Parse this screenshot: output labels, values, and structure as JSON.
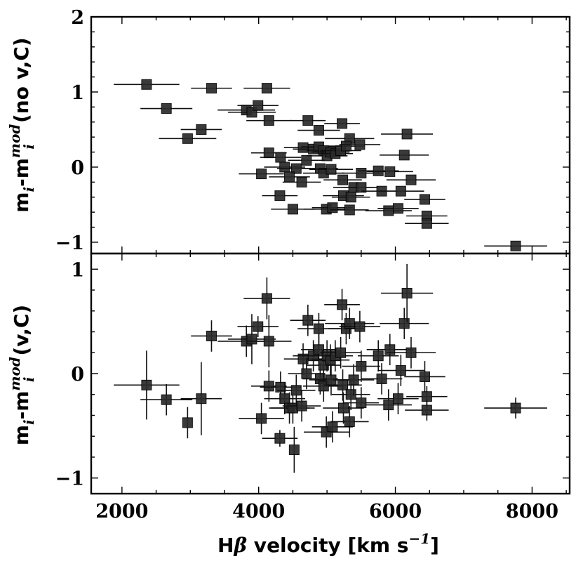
{
  "chart_data": [
    {
      "type": "scatter",
      "panel": "top",
      "ylabel_main": "m",
      "ylabel_sub_i": "i",
      "ylabel_mid": "-m",
      "ylabel_sup": "mod",
      "ylabel_sub2": "i",
      "ylabel_tail": "(no v,C)",
      "xlim": [
        1550,
        8550
      ],
      "ylim": [
        -1.15,
        2.0
      ],
      "yticks": [
        -1,
        0,
        1,
        2
      ],
      "ytick_labels": [
        "−1",
        "0",
        "1",
        "2"
      ],
      "points": [
        {
          "x": 2360,
          "y": 1.1,
          "xe": 480
        },
        {
          "x": 3310,
          "y": 1.05,
          "xe": 300
        },
        {
          "x": 4120,
          "y": 1.05,
          "xe": 340
        },
        {
          "x": 2650,
          "y": 0.78,
          "xe": 380
        },
        {
          "x": 3160,
          "y": 0.5,
          "xe": 300
        },
        {
          "x": 2960,
          "y": 0.38,
          "xe": 420
        },
        {
          "x": 3820,
          "y": 0.76,
          "xe": 420
        },
        {
          "x": 3900,
          "y": 0.73,
          "xe": 350
        },
        {
          "x": 3990,
          "y": 0.82,
          "xe": 300
        },
        {
          "x": 4150,
          "y": 0.62,
          "xe": 330
        },
        {
          "x": 4720,
          "y": 0.62,
          "xe": 260
        },
        {
          "x": 4880,
          "y": 0.49,
          "xe": 310
        },
        {
          "x": 5220,
          "y": 0.58,
          "xe": 260
        },
        {
          "x": 6170,
          "y": 0.44,
          "xe": 380
        },
        {
          "x": 5330,
          "y": 0.38,
          "xe": 360
        },
        {
          "x": 4150,
          "y": 0.19,
          "xe": 260
        },
        {
          "x": 4320,
          "y": 0.13,
          "xe": 300
        },
        {
          "x": 4650,
          "y": 0.26,
          "xe": 280
        },
        {
          "x": 4800,
          "y": 0.24,
          "xe": 300
        },
        {
          "x": 4880,
          "y": 0.27,
          "xe": 260
        },
        {
          "x": 4950,
          "y": 0.22,
          "xe": 250
        },
        {
          "x": 5000,
          "y": 0.15,
          "xe": 300
        },
        {
          "x": 5050,
          "y": 0.2,
          "xe": 280
        },
        {
          "x": 5120,
          "y": 0.18,
          "xe": 260
        },
        {
          "x": 5200,
          "y": 0.22,
          "xe": 300
        },
        {
          "x": 5280,
          "y": 0.28,
          "xe": 260
        },
        {
          "x": 5480,
          "y": 0.3,
          "xe": 300
        },
        {
          "x": 6130,
          "y": 0.16,
          "xe": 360
        },
        {
          "x": 4700,
          "y": 0.09,
          "xe": 270
        },
        {
          "x": 4380,
          "y": 0.0,
          "xe": 300
        },
        {
          "x": 4550,
          "y": -0.02,
          "xe": 280
        },
        {
          "x": 4900,
          "y": -0.02,
          "xe": 260
        },
        {
          "x": 4950,
          "y": -0.08,
          "xe": 300
        },
        {
          "x": 5060,
          "y": -0.03,
          "xe": 320
        },
        {
          "x": 4040,
          "y": -0.09,
          "xe": 330
        },
        {
          "x": 4450,
          "y": -0.13,
          "xe": 300
        },
        {
          "x": 4630,
          "y": -0.2,
          "xe": 280
        },
        {
          "x": 5230,
          "y": -0.17,
          "xe": 280
        },
        {
          "x": 5500,
          "y": -0.08,
          "xe": 280
        },
        {
          "x": 5750,
          "y": -0.05,
          "xe": 300
        },
        {
          "x": 5920,
          "y": -0.06,
          "xe": 340
        },
        {
          "x": 6230,
          "y": -0.17,
          "xe": 360
        },
        {
          "x": 5390,
          "y": -0.27,
          "xe": 300
        },
        {
          "x": 5500,
          "y": -0.27,
          "xe": 260
        },
        {
          "x": 5800,
          "y": -0.32,
          "xe": 300
        },
        {
          "x": 6080,
          "y": -0.32,
          "xe": 340
        },
        {
          "x": 5240,
          "y": -0.38,
          "xe": 300
        },
        {
          "x": 5350,
          "y": -0.4,
          "xe": 280
        },
        {
          "x": 4310,
          "y": -0.38,
          "xe": 260
        },
        {
          "x": 6430,
          "y": -0.43,
          "xe": 300
        },
        {
          "x": 4500,
          "y": -0.56,
          "xe": 320
        },
        {
          "x": 4990,
          "y": -0.56,
          "xe": 330
        },
        {
          "x": 5080,
          "y": -0.54,
          "xe": 300
        },
        {
          "x": 5330,
          "y": -0.57,
          "xe": 280
        },
        {
          "x": 5900,
          "y": -0.58,
          "xe": 340
        },
        {
          "x": 6040,
          "y": -0.55,
          "xe": 300
        },
        {
          "x": 6460,
          "y": -0.65,
          "xe": 300
        },
        {
          "x": 6460,
          "y": -0.75,
          "xe": 320
        },
        {
          "x": 7760,
          "y": -1.05,
          "xe": 460
        }
      ]
    },
    {
      "type": "scatter",
      "panel": "bottom",
      "ylabel_main": "m",
      "ylabel_sub_i": "i",
      "ylabel_mid": "-m",
      "ylabel_sup": "mod",
      "ylabel_sub2": "i",
      "ylabel_tail": "(v,C)",
      "xlabel": "Hβ velocity [km s−1]",
      "xlabel_main": "H",
      "xlabel_beta": "β",
      "xlabel_rest": " velocity [km s",
      "xlabel_sup": "−1",
      "xlabel_close": "]",
      "xlim": [
        1550,
        8550
      ],
      "ylim": [
        -1.15,
        1.15
      ],
      "xticks": [
        2000,
        4000,
        6000,
        8000
      ],
      "xtick_labels": [
        "2000",
        "4000",
        "6000",
        "8000"
      ],
      "yticks": [
        -1,
        0,
        1
      ],
      "ytick_labels": [
        "−1",
        "0",
        "1"
      ],
      "points": [
        {
          "x": 2360,
          "y": -0.11,
          "xe": 480,
          "ye": 0.33
        },
        {
          "x": 2650,
          "y": -0.25,
          "xe": 380,
          "ye": 0.15
        },
        {
          "x": 2960,
          "y": -0.47,
          "xe": 0,
          "ye": 0.15
        },
        {
          "x": 3160,
          "y": -0.24,
          "xe": 300,
          "ye": 0.35
        },
        {
          "x": 3310,
          "y": 0.36,
          "xe": 300,
          "ye": 0.15
        },
        {
          "x": 3820,
          "y": 0.31,
          "xe": 420,
          "ye": 0.15
        },
        {
          "x": 3900,
          "y": 0.33,
          "xe": 350,
          "ye": 0.24
        },
        {
          "x": 3990,
          "y": 0.45,
          "xe": 300,
          "ye": 0.1
        },
        {
          "x": 4120,
          "y": 0.72,
          "xe": 340,
          "ye": 0.2
        },
        {
          "x": 4150,
          "y": 0.31,
          "xe": 330,
          "ye": 0.25
        },
        {
          "x": 4040,
          "y": -0.43,
          "xe": 330,
          "ye": 0.15
        },
        {
          "x": 4150,
          "y": -0.12,
          "xe": 260,
          "ye": 0.15
        },
        {
          "x": 4320,
          "y": -0.13,
          "xe": 300,
          "ye": 0.15
        },
        {
          "x": 4310,
          "y": -0.62,
          "xe": 260,
          "ye": 0.08
        },
        {
          "x": 4380,
          "y": -0.24,
          "xe": 300,
          "ye": 0.15
        },
        {
          "x": 4450,
          "y": -0.33,
          "xe": 300,
          "ye": 0.15
        },
        {
          "x": 4500,
          "y": -0.33,
          "xe": 320,
          "ye": 0.15
        },
        {
          "x": 4520,
          "y": -0.73,
          "xe": 0,
          "ye": 0.22
        },
        {
          "x": 4550,
          "y": -0.16,
          "xe": 280,
          "ye": 0.15
        },
        {
          "x": 4630,
          "y": -0.31,
          "xe": 280,
          "ye": 0.15
        },
        {
          "x": 4650,
          "y": 0.14,
          "xe": 280,
          "ye": 0.15
        },
        {
          "x": 4700,
          "y": 0.0,
          "xe": 270,
          "ye": 0.15
        },
        {
          "x": 4720,
          "y": 0.51,
          "xe": 260,
          "ye": 0.15
        },
        {
          "x": 4800,
          "y": 0.17,
          "xe": 300,
          "ye": 0.15
        },
        {
          "x": 4880,
          "y": 0.43,
          "xe": 310,
          "ye": 0.15
        },
        {
          "x": 4880,
          "y": 0.23,
          "xe": 260,
          "ye": 0.15
        },
        {
          "x": 4900,
          "y": -0.05,
          "xe": 260,
          "ye": 0.15
        },
        {
          "x": 4950,
          "y": 0.08,
          "xe": 250,
          "ye": 0.15
        },
        {
          "x": 4950,
          "y": -0.12,
          "xe": 300,
          "ye": 0.15
        },
        {
          "x": 5000,
          "y": 0.17,
          "xe": 300,
          "ye": 0.15
        },
        {
          "x": 4990,
          "y": -0.56,
          "xe": 330,
          "ye": 0.15
        },
        {
          "x": 5050,
          "y": 0.13,
          "xe": 280,
          "ye": 0.15
        },
        {
          "x": 5060,
          "y": -0.06,
          "xe": 320,
          "ye": 0.15
        },
        {
          "x": 5080,
          "y": -0.51,
          "xe": 300,
          "ye": 0.15
        },
        {
          "x": 5120,
          "y": 0.17,
          "xe": 260,
          "ye": 0.15
        },
        {
          "x": 5200,
          "y": 0.2,
          "xe": 300,
          "ye": 0.15
        },
        {
          "x": 5220,
          "y": 0.66,
          "xe": 260,
          "ye": 0.15
        },
        {
          "x": 5230,
          "y": -0.11,
          "xe": 280,
          "ye": 0.15
        },
        {
          "x": 5240,
          "y": -0.33,
          "xe": 300,
          "ye": 0.15
        },
        {
          "x": 5280,
          "y": 0.43,
          "xe": 260,
          "ye": 0.15
        },
        {
          "x": 5330,
          "y": 0.48,
          "xe": 360,
          "ye": 0.15
        },
        {
          "x": 5330,
          "y": -0.46,
          "xe": 280,
          "ye": 0.15
        },
        {
          "x": 5350,
          "y": -0.2,
          "xe": 280,
          "ye": 0.15
        },
        {
          "x": 5390,
          "y": -0.06,
          "xe": 300,
          "ye": 0.15
        },
        {
          "x": 5480,
          "y": 0.45,
          "xe": 300,
          "ye": 0.15
        },
        {
          "x": 5500,
          "y": 0.07,
          "xe": 280,
          "ye": 0.15
        },
        {
          "x": 5500,
          "y": -0.28,
          "xe": 260,
          "ye": 0.15
        },
        {
          "x": 5750,
          "y": 0.17,
          "xe": 300,
          "ye": 0.15
        },
        {
          "x": 5800,
          "y": -0.05,
          "xe": 300,
          "ye": 0.15
        },
        {
          "x": 5900,
          "y": -0.3,
          "xe": 340,
          "ye": 0.15
        },
        {
          "x": 5920,
          "y": 0.23,
          "xe": 340,
          "ye": 0.15
        },
        {
          "x": 6040,
          "y": -0.24,
          "xe": 300,
          "ye": 0.15
        },
        {
          "x": 6080,
          "y": 0.03,
          "xe": 340,
          "ye": 0.15
        },
        {
          "x": 6130,
          "y": 0.48,
          "xe": 360,
          "ye": 0.15
        },
        {
          "x": 6170,
          "y": 0.77,
          "xe": 380,
          "ye": 0.28
        },
        {
          "x": 6230,
          "y": 0.2,
          "xe": 360,
          "ye": 0.15
        },
        {
          "x": 6430,
          "y": -0.03,
          "xe": 300,
          "ye": 0.15
        },
        {
          "x": 6460,
          "y": -0.22,
          "xe": 300,
          "ye": 0.1
        },
        {
          "x": 6460,
          "y": -0.35,
          "xe": 320,
          "ye": 0.1
        },
        {
          "x": 7760,
          "y": -0.33,
          "xe": 460,
          "ye": 0.1
        }
      ]
    }
  ]
}
